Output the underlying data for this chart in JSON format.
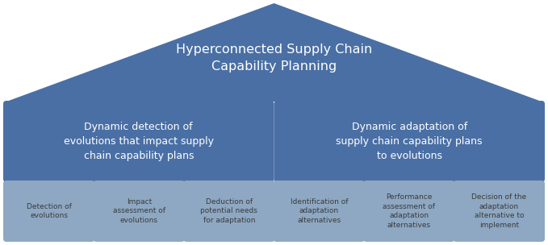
{
  "title": "Hyperconnected Supply Chain\nCapability Planning",
  "title_color": "#ffffff",
  "triangle_color": "#4a6fa5",
  "mid_box_color": "#4a6fa5",
  "bottom_box_color": "#8ea8c3",
  "mid_text_color": "#ffffff",
  "bottom_text_color": "#3a3a3a",
  "bg_color": "#ffffff",
  "mid_left_text": "Dynamic detection of\nevolutions that impact supply\nchain capability plans",
  "mid_right_text": "Dynamic adaptation of\nsupply chain capability plans\nto evolutions",
  "bottom_boxes": [
    "Detection of\nevolutions",
    "Impact\nassessment of\nevolutions",
    "Deduction of\npotential needs\nfor adaptation",
    "Identification of\nadaptation\nalternatives",
    "Performance\nassessment of\nadaptation\nalternatives",
    "Decision of the\nadaptation\nalternative to\nimplement"
  ],
  "figsize": [
    6.79,
    3.04
  ],
  "dpi": 100
}
